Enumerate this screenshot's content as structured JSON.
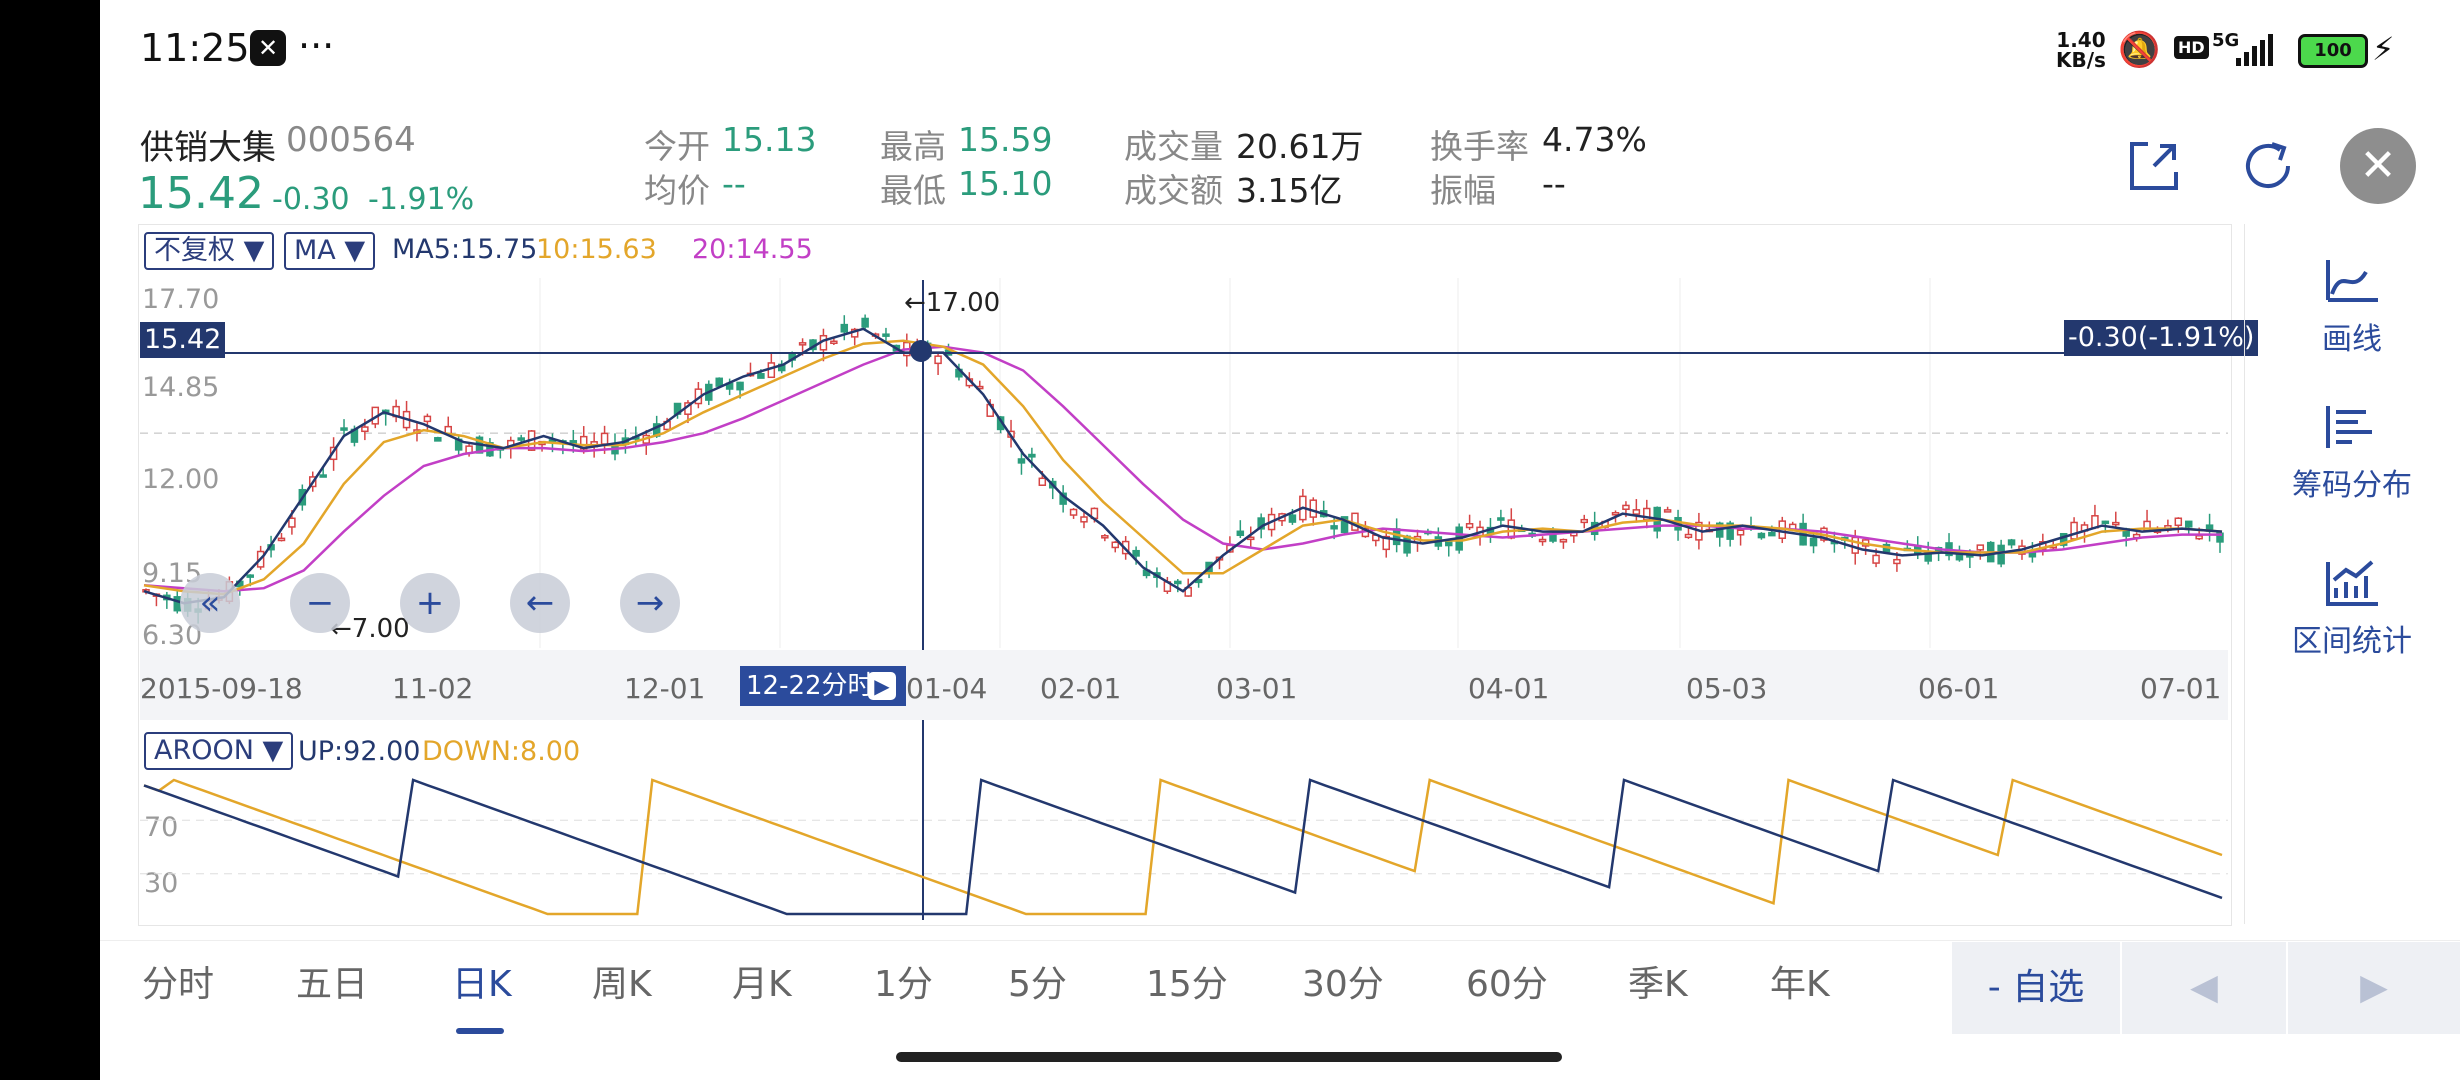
{
  "status": {
    "time": "11:25",
    "net_speed_top": "1.40",
    "net_speed_bottom": "KB/s",
    "hd": "HD",
    "signal": "5G",
    "battery": "100"
  },
  "stock": {
    "name": "供销大集",
    "code": "000564",
    "price": "15.42",
    "change": "-0.30",
    "change_pct": "-1.91%"
  },
  "quote": {
    "open_label": "今开",
    "open": "15.13",
    "avg_label": "均价",
    "avg": "--",
    "high_label": "最高",
    "high": "15.59",
    "low_label": "最低",
    "low": "15.10",
    "volume_label": "成交量",
    "volume": "20.61万",
    "amount_label": "成交额",
    "amount": "3.15亿",
    "turnover_label": "换手率",
    "turnover": "4.73%",
    "amplitude_label": "振幅",
    "amplitude": "--"
  },
  "chart_controls": {
    "adjust": "不复权 ▼",
    "indicator": "MA ▼",
    "ma5": "MA5:15.75",
    "ma10": "10:15.63",
    "ma20": "20:14.55"
  },
  "colors": {
    "ma5": "#23386e",
    "ma10": "#e3a62a",
    "ma20": "#c23fc6",
    "up": "#d64545",
    "down": "#2b9c7c",
    "accent": "#2b4b9c"
  },
  "chart_data": {
    "type": "candlestick",
    "price_axis": {
      "ticks": [
        "17.70",
        "14.85",
        "12.00",
        "9.15",
        "6.30"
      ],
      "ylim": [
        6.3,
        17.7
      ]
    },
    "crosshair": {
      "price": "15.42",
      "change": "-0.30(-1.91%)",
      "date": "12-22分时"
    },
    "annotations": {
      "high": "←17.00",
      "low": "←7.00"
    },
    "x_dates": [
      "2015-09-18",
      "11-02",
      "12-01",
      "01-04",
      "02-01",
      "03-01",
      "04-01",
      "05-03",
      "06-01",
      "07-01"
    ],
    "ma5_approx": [
      7.6,
      7.2,
      7.4,
      8.8,
      10.8,
      12.8,
      13.6,
      13.2,
      12.6,
      12.4,
      12.8,
      12.4,
      12.6,
      13.2,
      14.2,
      14.8,
      15.2,
      16.0,
      16.4,
      15.6,
      15.6,
      14.2,
      12.2,
      10.8,
      9.8,
      8.4,
      7.6,
      8.8,
      9.8,
      10.4,
      10.0,
      9.4,
      9.2,
      9.4,
      9.8,
      9.6,
      9.6,
      10.2,
      10.0,
      9.6,
      9.8,
      9.6,
      9.4,
      9.0,
      8.8,
      8.9,
      8.8,
      9.0,
      9.4,
      9.8,
      9.6,
      9.7,
      9.6
    ],
    "ma10_approx": [
      7.8,
      7.6,
      7.5,
      8.0,
      9.2,
      11.2,
      12.6,
      13.0,
      12.8,
      12.4,
      12.6,
      12.5,
      12.5,
      12.9,
      13.6,
      14.2,
      14.8,
      15.4,
      15.9,
      16.0,
      15.8,
      15.2,
      13.8,
      12.0,
      10.6,
      9.4,
      8.2,
      8.2,
      9.0,
      9.8,
      10.0,
      9.6,
      9.3,
      9.3,
      9.6,
      9.7,
      9.6,
      9.9,
      10.0,
      9.8,
      9.8,
      9.7,
      9.5,
      9.2,
      9.0,
      8.9,
      8.9,
      8.9,
      9.2,
      9.6,
      9.7,
      9.7,
      9.6
    ],
    "ma20_approx": [
      7.8,
      7.7,
      7.6,
      7.7,
      8.3,
      9.6,
      10.8,
      11.8,
      12.2,
      12.4,
      12.4,
      12.3,
      12.4,
      12.6,
      12.9,
      13.4,
      14.0,
      14.6,
      15.2,
      15.7,
      15.8,
      15.6,
      15.0,
      13.8,
      12.5,
      11.2,
      10.0,
      9.2,
      9.0,
      9.2,
      9.5,
      9.7,
      9.6,
      9.5,
      9.4,
      9.5,
      9.6,
      9.7,
      9.8,
      9.8,
      9.7,
      9.7,
      9.6,
      9.4,
      9.2,
      9.0,
      8.9,
      8.9,
      9.0,
      9.2,
      9.4,
      9.5,
      9.5
    ],
    "aroon": {
      "selector": "AROON ▼",
      "up_label": "UP:92.00",
      "down_label": "DOWN:8.00",
      "ticks": [
        "70",
        "30"
      ],
      "ylim": [
        0,
        100
      ]
    }
  },
  "side_tools": [
    {
      "icon": "draw-line-icon",
      "label": "画线"
    },
    {
      "icon": "chip-distribution-icon",
      "label": "筹码分布"
    },
    {
      "icon": "interval-stats-icon",
      "label": "区间统计"
    }
  ],
  "bottom_tabs": [
    "分时",
    "五日",
    "日K",
    "周K",
    "月K",
    "1分",
    "5分",
    "15分",
    "30分",
    "60分",
    "季K",
    "年K"
  ],
  "active_tab": "日K",
  "watchlist_button": "- 自选"
}
